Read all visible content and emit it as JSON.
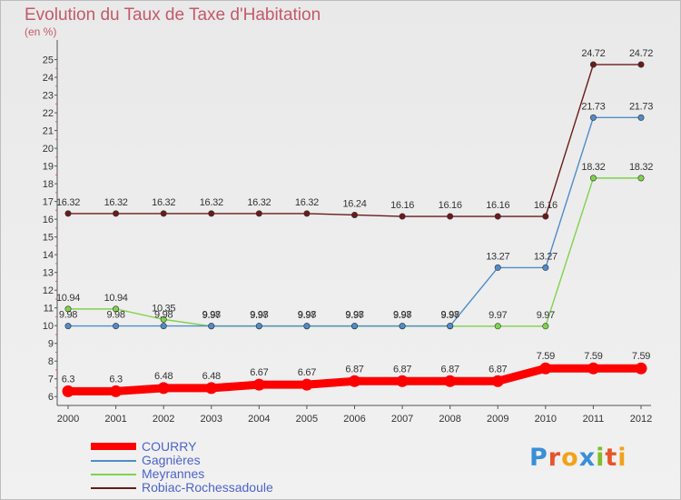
{
  "title": "Evolution du Taux de Taxe d'Habitation",
  "unit": "(en %)",
  "logo_text": "Proxiti",
  "chart_data": {
    "type": "line",
    "title": "Evolution du Taux de Taxe d'Habitation",
    "ylabel": "(en %)",
    "x": [
      "2000",
      "2001",
      "2002",
      "2003",
      "2004",
      "2005",
      "2006",
      "2007",
      "2008",
      "2009",
      "2010",
      "2011",
      "2012"
    ],
    "ylim": [
      6,
      25
    ],
    "yticks": [
      6,
      7,
      8,
      9,
      10,
      11,
      12,
      13,
      14,
      15,
      16,
      17,
      18,
      19,
      20,
      21,
      22,
      23,
      24,
      25
    ],
    "grid": false,
    "legend_position": "bottom-left",
    "series": [
      {
        "name": "COURRY",
        "color": "#ff0000",
        "values": [
          6.3,
          6.3,
          6.48,
          6.48,
          6.67,
          6.67,
          6.87,
          6.87,
          6.87,
          6.87,
          7.59,
          7.59,
          7.59
        ],
        "labels": [
          "6.3",
          "6.3",
          "6.48",
          "6.48",
          "6.67",
          "6.67",
          "6.87",
          "6.87",
          "6.87",
          "6.87",
          "7.59",
          "7.59",
          "7.59"
        ]
      },
      {
        "name": "Gagnières",
        "color": "#4f8cc9",
        "values": [
          9.98,
          9.98,
          9.98,
          9.98,
          9.98,
          9.98,
          9.98,
          9.98,
          9.98,
          13.27,
          13.27,
          21.73,
          21.73
        ],
        "labels": [
          "9.98",
          "9.98",
          "9.98",
          "9.98",
          "9.98",
          "9.98",
          "9.98",
          "9.98",
          "9.98",
          "13.27",
          "13.27",
          "21.73",
          "21.73"
        ]
      },
      {
        "name": "Meyrannes",
        "color": "#7fd34a",
        "values": [
          10.94,
          10.94,
          10.35,
          9.97,
          9.97,
          9.97,
          9.97,
          9.97,
          9.97,
          9.97,
          9.97,
          18.32,
          18.32
        ],
        "labels": [
          "10.94",
          "10.94",
          "10.35",
          "9.97",
          "9.97",
          "9.97",
          "9.97",
          "9.97",
          "9.97",
          "9.97",
          "9.97",
          "18.32",
          "18.32"
        ]
      },
      {
        "name": "Robiac-Rochessadoule",
        "color": "#6b1a1a",
        "values": [
          16.32,
          16.32,
          16.32,
          16.32,
          16.32,
          16.32,
          16.24,
          16.16,
          16.16,
          16.16,
          16.16,
          24.72,
          24.72
        ],
        "labels": [
          "16.32",
          "16.32",
          "16.32",
          "16.32",
          "16.32",
          "16.32",
          "16.24",
          "16.16",
          "16.16",
          "16.16",
          "16.16",
          "24.72",
          "24.72"
        ]
      }
    ]
  },
  "legend": [
    {
      "label": "COURRY",
      "color": "#ff0000"
    },
    {
      "label": "Gagnières",
      "color": "#4f8cc9"
    },
    {
      "label": "Meyrannes",
      "color": "#7fd34a"
    },
    {
      "label": "Robiac-Rochessadoule",
      "color": "#6b1a1a"
    }
  ]
}
